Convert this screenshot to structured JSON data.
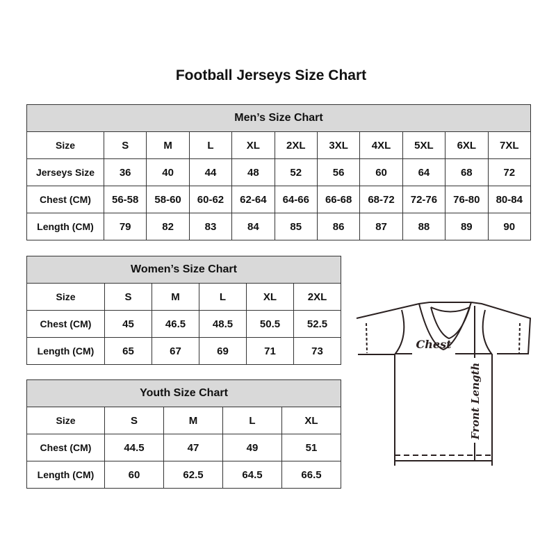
{
  "title": "Football Jerseys Size Chart",
  "men": {
    "header": "Men’s Size Chart",
    "rows": [
      [
        "Size",
        "S",
        "M",
        "L",
        "XL",
        "2XL",
        "3XL",
        "4XL",
        "5XL",
        "6XL",
        "7XL"
      ],
      [
        "Jerseys Size",
        "36",
        "40",
        "44",
        "48",
        "52",
        "56",
        "60",
        "64",
        "68",
        "72"
      ],
      [
        "Chest (CM)",
        "56-58",
        "58-60",
        "60-62",
        "62-64",
        "64-66",
        "66-68",
        "68-72",
        "72-76",
        "76-80",
        "80-84"
      ],
      [
        "Length (CM)",
        "79",
        "82",
        "83",
        "84",
        "85",
        "86",
        "87",
        "88",
        "89",
        "90"
      ]
    ]
  },
  "women": {
    "header": "Women’s Size Chart",
    "rows": [
      [
        "Size",
        "S",
        "M",
        "L",
        "XL",
        "2XL"
      ],
      [
        "Chest (CM)",
        "45",
        "46.5",
        "48.5",
        "50.5",
        "52.5"
      ],
      [
        "Length (CM)",
        "65",
        "67",
        "69",
        "71",
        "73"
      ]
    ]
  },
  "youth": {
    "header": "Youth Size Chart",
    "rows": [
      [
        "Size",
        "S",
        "M",
        "L",
        "XL"
      ],
      [
        "Chest (CM)",
        "44.5",
        "47",
        "49",
        "51"
      ],
      [
        "Length (CM)",
        "60",
        "62.5",
        "64.5",
        "66.5"
      ]
    ]
  },
  "diagram": {
    "chest_label": "Chest",
    "length_label": "Front Length"
  }
}
